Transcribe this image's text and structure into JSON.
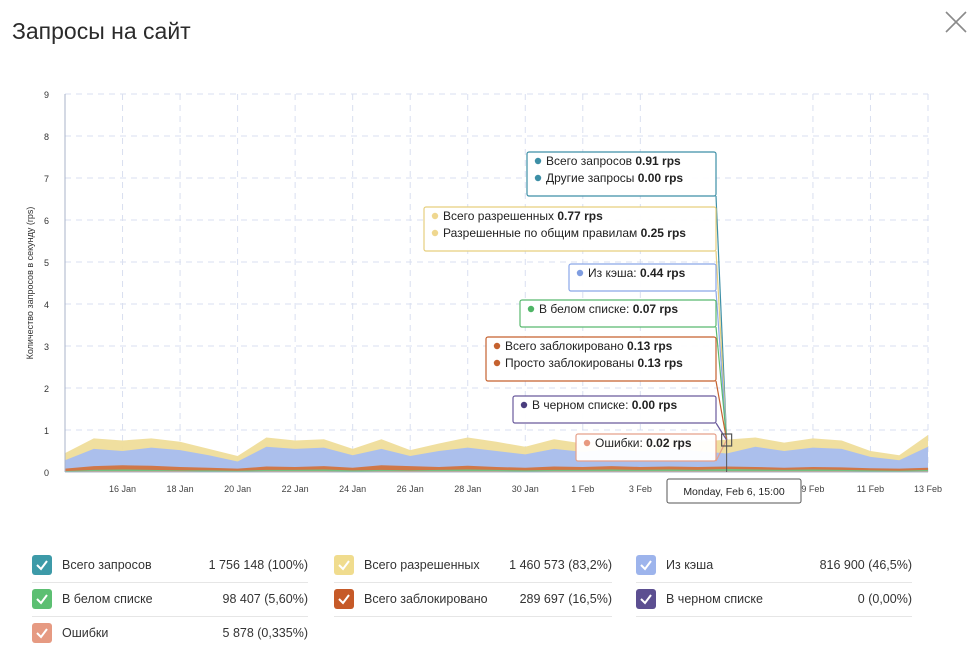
{
  "page": {
    "title": "Запросы на сайт"
  },
  "chart_data": {
    "type": "area",
    "ylabel": "Количество запросов в секунду (rps)",
    "ylim": [
      0,
      9
    ],
    "yticks": [
      "0",
      "1",
      "2",
      "3",
      "4",
      "5",
      "6",
      "7",
      "8",
      "9"
    ],
    "grid": true,
    "xlim": [
      "2023-01-14",
      "2023-02-13"
    ],
    "xticks": [
      {
        "label": "16 Jan",
        "date": "2023-01-16"
      },
      {
        "label": "18 Jan",
        "date": "2023-01-18"
      },
      {
        "label": "20 Jan",
        "date": "2023-01-20"
      },
      {
        "label": "22 Jan",
        "date": "2023-01-22"
      },
      {
        "label": "24 Jan",
        "date": "2023-01-24"
      },
      {
        "label": "26 Jan",
        "date": "2023-01-26"
      },
      {
        "label": "28 Jan",
        "date": "2023-01-28"
      },
      {
        "label": "30 Jan",
        "date": "2023-01-30"
      },
      {
        "label": "1 Feb",
        "date": "2023-02-01"
      },
      {
        "label": "3 Feb",
        "date": "2023-02-03"
      },
      {
        "label": "9 Feb",
        "date": "2023-02-09"
      },
      {
        "label": "11 Feb",
        "date": "2023-02-11"
      },
      {
        "label": "13 Feb",
        "date": "2023-02-13"
      }
    ],
    "x": [
      "2023-01-14",
      "2023-01-15",
      "2023-01-16",
      "2023-01-17",
      "2023-01-18",
      "2023-01-19",
      "2023-01-20",
      "2023-01-21",
      "2023-01-22",
      "2023-01-23",
      "2023-01-24",
      "2023-01-25",
      "2023-01-26",
      "2023-01-27",
      "2023-01-28",
      "2023-01-29",
      "2023-01-30",
      "2023-01-31",
      "2023-02-01",
      "2023-02-02",
      "2023-02-03",
      "2023-02-04",
      "2023-02-05",
      "2023-02-06",
      "2023-02-07",
      "2023-02-08",
      "2023-02-09",
      "2023-02-10",
      "2023-02-11",
      "2023-02-12",
      "2023-02-13"
    ],
    "series": [
      {
        "name": "Всего разрешенных",
        "color": "#efdd9a",
        "values": [
          0.45,
          0.8,
          0.75,
          0.8,
          0.72,
          0.55,
          0.38,
          0.82,
          0.75,
          0.78,
          0.55,
          0.78,
          0.52,
          0.68,
          0.82,
          0.72,
          0.6,
          0.78,
          0.68,
          0.78,
          0.72,
          0.8,
          0.72,
          0.77,
          0.82,
          0.7,
          0.8,
          0.75,
          0.5,
          0.4,
          0.88
        ]
      },
      {
        "name": "Из кэша",
        "color": "#a6bdf0",
        "values": [
          0.28,
          0.55,
          0.5,
          0.58,
          0.52,
          0.4,
          0.25,
          0.6,
          0.55,
          0.58,
          0.4,
          0.55,
          0.38,
          0.5,
          0.58,
          0.5,
          0.42,
          0.55,
          0.48,
          0.55,
          0.5,
          0.58,
          0.5,
          0.44,
          0.6,
          0.5,
          0.58,
          0.55,
          0.36,
          0.28,
          0.6
        ]
      },
      {
        "name": "Всего заблокировано",
        "color": "#d2733f",
        "values": [
          0.08,
          0.14,
          0.16,
          0.15,
          0.12,
          0.1,
          0.08,
          0.13,
          0.12,
          0.14,
          0.1,
          0.16,
          0.14,
          0.12,
          0.15,
          0.12,
          0.1,
          0.13,
          0.12,
          0.14,
          0.12,
          0.13,
          0.12,
          0.13,
          0.12,
          0.1,
          0.12,
          0.11,
          0.09,
          0.08,
          0.1
        ]
      },
      {
        "name": "В белом списке",
        "color": "#6dc585",
        "values": [
          0.02,
          0.05,
          0.06,
          0.05,
          0.04,
          0.04,
          0.03,
          0.05,
          0.05,
          0.06,
          0.04,
          0.05,
          0.04,
          0.05,
          0.06,
          0.05,
          0.04,
          0.05,
          0.05,
          0.06,
          0.05,
          0.06,
          0.05,
          0.07,
          0.06,
          0.05,
          0.06,
          0.05,
          0.04,
          0.03,
          0.05
        ]
      },
      {
        "name": "Ошибки",
        "color": "#e79a7a",
        "values": [
          0.01,
          0.02,
          0.02,
          0.02,
          0.02,
          0.01,
          0.01,
          0.02,
          0.02,
          0.02,
          0.01,
          0.02,
          0.02,
          0.02,
          0.02,
          0.02,
          0.01,
          0.02,
          0.02,
          0.02,
          0.02,
          0.02,
          0.02,
          0.02,
          0.02,
          0.02,
          0.02,
          0.02,
          0.01,
          0.01,
          0.02
        ]
      }
    ],
    "tooltip_date": "2023-02-06",
    "tooltip": {
      "header": "Monday, Feb 6, 15:00",
      "boxes": [
        {
          "border": "#3d8fa6",
          "rows": [
            {
              "label": "Всего запросов",
              "value": "0.91 rps",
              "dot": "#3d8fa6"
            },
            {
              "label": "Другие запросы",
              "value": "0.00 rps",
              "dot": "#3d8fa6"
            }
          ]
        },
        {
          "border": "#e6cf7e",
          "rows": [
            {
              "label": "Всего разрешенных",
              "value": "0.77 rps",
              "dot": "#efd78f"
            },
            {
              "label": "Разрешенные по общим правилам",
              "value": "0.25 rps",
              "dot": "#efd78f"
            }
          ]
        },
        {
          "border": "#8aa7e8",
          "rows": [
            {
              "label": "Из кэша:",
              "value": "0.44 rps",
              "dot": "#7f9de0"
            }
          ]
        },
        {
          "border": "#59b96f",
          "rows": [
            {
              "label": "В белом списке:",
              "value": "0.07 rps",
              "dot": "#4fb566"
            }
          ]
        },
        {
          "border": "#c5622f",
          "rows": [
            {
              "label": "Всего заблокировано",
              "value": "0.13 rps",
              "dot": "#c5622f"
            },
            {
              "label": "Просто заблокированы",
              "value": "0.13 rps",
              "dot": "#c5622f"
            }
          ]
        },
        {
          "border": "#6a5a9c",
          "rows": [
            {
              "label": "В черном списке:",
              "value": "0.00 rps",
              "dot": "#4a3d7e"
            }
          ]
        },
        {
          "border": "#e5a08a",
          "rows": [
            {
              "label": "Ошибки:",
              "value": "0.02 rps",
              "dot": "#e89a80"
            }
          ]
        }
      ]
    }
  },
  "legend": [
    {
      "label": "Всего запросов",
      "value": "1 756 148 (100%)",
      "color": "#3d9aa8",
      "checked": true
    },
    {
      "label": "Всего разрешенных",
      "value": "1 460 573 (83,2%)",
      "color": "#f0dc8e",
      "checked": true
    },
    {
      "label": "Из кэша",
      "value": "816 900 (46,5%)",
      "color": "#9db4ec",
      "checked": true
    },
    {
      "label": "В белом списке",
      "value": "98 407 (5,60%)",
      "color": "#5cbf72",
      "checked": true
    },
    {
      "label": "Всего заблокировано",
      "value": "289 697 (16,5%)",
      "color": "#c65a28",
      "checked": true
    },
    {
      "label": "В черном списке",
      "value": "0 (0,00%)",
      "color": "#5c4f91",
      "checked": true
    },
    {
      "label": "Ошибки",
      "value": "5 878 (0,335%)",
      "color": "#e69a82",
      "checked": true
    }
  ]
}
